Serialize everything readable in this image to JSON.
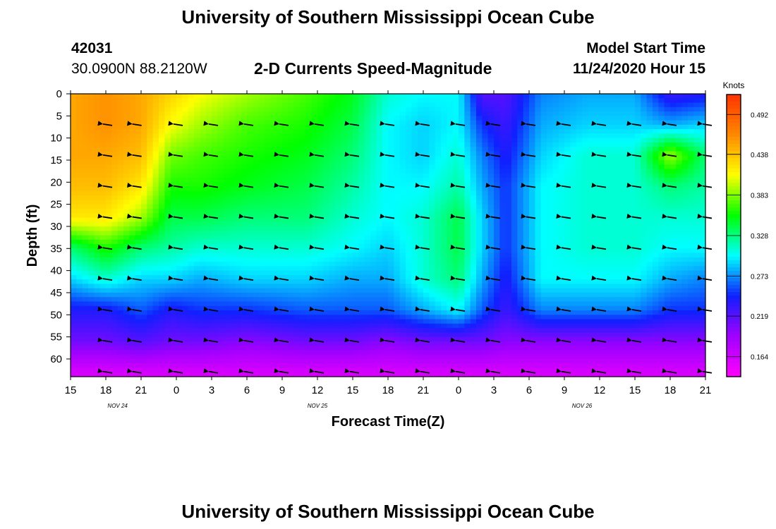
{
  "header": {
    "title": "University of Southern Mississippi Ocean Cube",
    "station_id": "42031",
    "station_coords": "30.0900N 88.2120W",
    "plot_title": "2-D Currents Speed-Magnitude",
    "model_start_label": "Model Start Time",
    "model_start_value": "11/24/2020 Hour 15"
  },
  "footer": {
    "title": "University of Southern Mississippi Ocean Cube"
  },
  "chart_data": {
    "type": "heatmap",
    "title": "2-D Currents Speed-Magnitude",
    "xlabel": "Forecast Time(Z)",
    "ylabel": "Depth (ft)",
    "x_tick_labels": [
      "15",
      "18",
      "21",
      "0",
      "3",
      "6",
      "9",
      "12",
      "15",
      "18",
      "21",
      "0",
      "3",
      "6",
      "9",
      "12",
      "15",
      "18",
      "21"
    ],
    "x_hours": [
      0,
      3,
      6,
      9,
      12,
      15,
      18,
      21,
      24,
      27,
      30,
      33,
      36,
      39,
      42,
      45,
      48,
      51,
      54
    ],
    "date_labels": [
      {
        "text": "NOV 24",
        "hour": 4
      },
      {
        "text": "NOV 25",
        "hour": 21
      },
      {
        "text": "NOV 26",
        "hour": 43.5
      }
    ],
    "y_tick_labels": [
      "0",
      "5",
      "10",
      "15",
      "20",
      "25",
      "30",
      "35",
      "40",
      "45",
      "50",
      "55",
      "60"
    ],
    "ylim": [
      0,
      64
    ],
    "xlim": [
      0,
      54
    ],
    "colorbar": {
      "title": "Knots",
      "range": [
        0.137,
        0.519
      ],
      "ticks": [
        0.164,
        0.219,
        0.273,
        0.328,
        0.383,
        0.438,
        0.492
      ],
      "tick_labels": [
        "0.164",
        "0.219",
        "0.273",
        "0.328",
        "0.383",
        "0.438",
        "0.492"
      ],
      "colors": [
        "#ff00ff",
        "#a000ff",
        "#1020ff",
        "#00ffff",
        "#00ff00",
        "#ffff00",
        "#ff8800",
        "#ff3300"
      ]
    },
    "depth_levels_ft": [
      0,
      7,
      14,
      21,
      28,
      35,
      42,
      49,
      56,
      63
    ],
    "vector_columns_hours": [
      3,
      5.5,
      9,
      12,
      15,
      18,
      21,
      24,
      27,
      30,
      33,
      36,
      39,
      42,
      45,
      48,
      51,
      54
    ],
    "vector_rows_ft": [
      7,
      14,
      21,
      28,
      35,
      42,
      49,
      56,
      63
    ],
    "vector_direction": "west",
    "speed_time_hours": [
      0,
      3,
      6,
      8.5,
      11,
      15,
      20,
      24,
      27,
      30,
      33,
      35,
      37,
      40,
      44,
      48,
      51,
      54
    ],
    "speed_knots": [
      [
        0.45,
        0.46,
        0.45,
        0.43,
        0.41,
        0.39,
        0.37,
        0.35,
        0.31,
        0.3,
        0.3,
        0.22,
        0.22,
        0.27,
        0.28,
        0.28,
        0.23,
        0.24
      ],
      [
        0.45,
        0.46,
        0.45,
        0.41,
        0.39,
        0.37,
        0.36,
        0.34,
        0.3,
        0.29,
        0.3,
        0.25,
        0.23,
        0.28,
        0.29,
        0.29,
        0.28,
        0.29
      ],
      [
        0.45,
        0.45,
        0.44,
        0.38,
        0.37,
        0.36,
        0.35,
        0.33,
        0.3,
        0.29,
        0.31,
        0.27,
        0.24,
        0.29,
        0.31,
        0.31,
        0.39,
        0.33
      ],
      [
        0.44,
        0.44,
        0.42,
        0.36,
        0.36,
        0.35,
        0.34,
        0.32,
        0.3,
        0.3,
        0.32,
        0.28,
        0.25,
        0.3,
        0.31,
        0.31,
        0.33,
        0.32
      ],
      [
        0.42,
        0.42,
        0.39,
        0.34,
        0.34,
        0.33,
        0.33,
        0.31,
        0.3,
        0.31,
        0.34,
        0.29,
        0.25,
        0.3,
        0.31,
        0.31,
        0.31,
        0.31
      ],
      [
        0.33,
        0.36,
        0.33,
        0.32,
        0.31,
        0.31,
        0.31,
        0.3,
        0.29,
        0.31,
        0.34,
        0.29,
        0.25,
        0.3,
        0.31,
        0.31,
        0.3,
        0.3
      ],
      [
        0.29,
        0.31,
        0.29,
        0.29,
        0.28,
        0.29,
        0.29,
        0.28,
        0.28,
        0.31,
        0.33,
        0.28,
        0.24,
        0.3,
        0.3,
        0.3,
        0.28,
        0.27
      ],
      [
        0.24,
        0.24,
        0.26,
        0.24,
        0.25,
        0.25,
        0.26,
        0.26,
        0.26,
        0.28,
        0.3,
        0.26,
        0.23,
        0.27,
        0.27,
        0.27,
        0.25,
        0.25
      ],
      [
        0.21,
        0.21,
        0.22,
        0.21,
        0.21,
        0.2,
        0.21,
        0.21,
        0.2,
        0.21,
        0.21,
        0.21,
        0.2,
        0.2,
        0.2,
        0.2,
        0.2,
        0.2
      ],
      [
        0.16,
        0.16,
        0.16,
        0.16,
        0.16,
        0.16,
        0.16,
        0.16,
        0.16,
        0.16,
        0.16,
        0.16,
        0.16,
        0.16,
        0.16,
        0.16,
        0.16,
        0.16
      ]
    ]
  }
}
